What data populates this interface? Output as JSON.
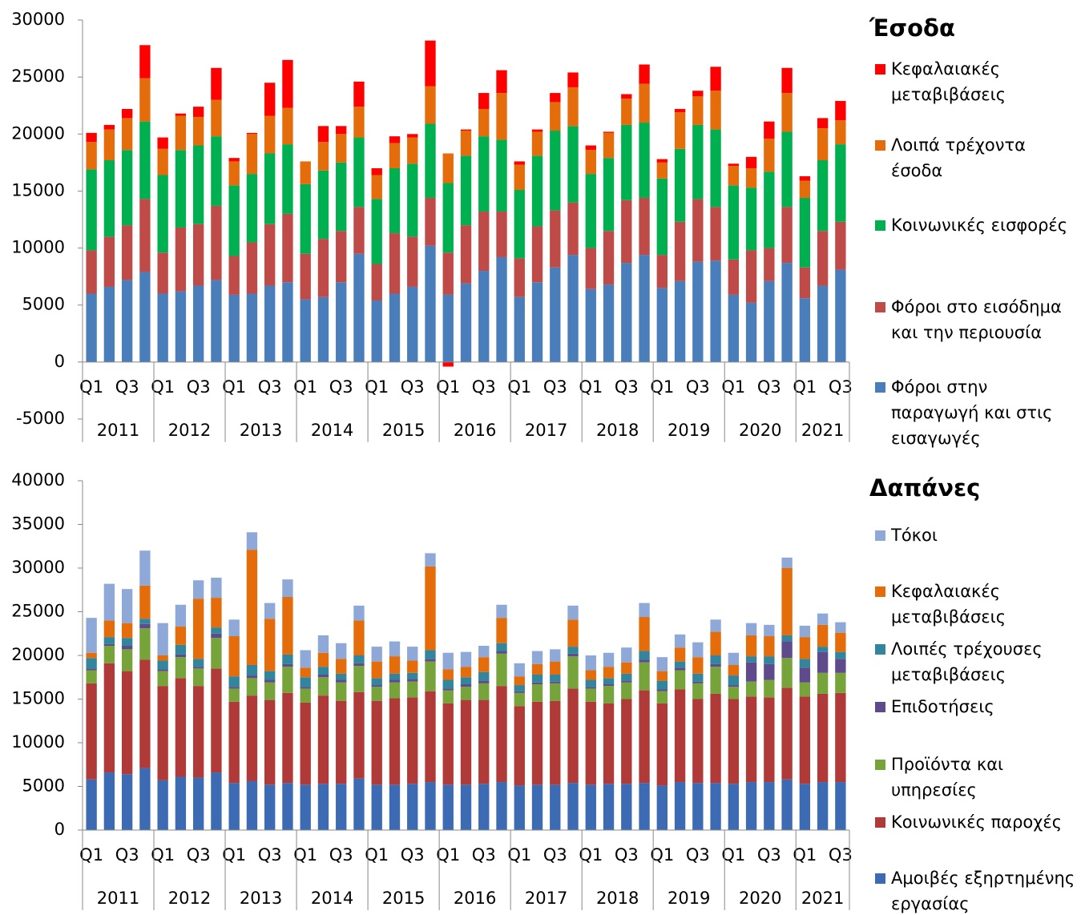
{
  "chart_data": [
    {
      "type": "stacked-bar",
      "title": "Έσοδα",
      "categories": [
        "Q1",
        null,
        "Q3",
        null,
        "Q1",
        null,
        "Q3",
        null,
        "Q1",
        null,
        "Q3",
        null,
        "Q1",
        null,
        "Q3",
        null,
        "Q1",
        null,
        "Q3",
        null,
        "Q1",
        null,
        "Q3",
        null,
        "Q1",
        null,
        "Q3",
        null,
        "Q1",
        null,
        "Q3",
        null,
        "Q1",
        null,
        "Q3",
        null,
        "Q1",
        null,
        "Q3",
        null,
        "Q1",
        null,
        "Q3"
      ],
      "years": [
        "2011",
        "2012",
        "2013",
        "2014",
        "2015",
        "2016",
        "2017",
        "2018",
        "2019",
        "2020",
        "2021"
      ],
      "ylim": [
        -5000,
        30000
      ],
      "yticks": [
        -5000,
        0,
        5000,
        10000,
        15000,
        20000,
        25000,
        30000
      ],
      "grid": false,
      "series": [
        {
          "name": "Φόροι στην παραγωγή και στις εισαγωγές",
          "color": "#4a7ebb",
          "values": [
            6000,
            6600,
            7200,
            7900,
            6000,
            6200,
            6700,
            7200,
            5900,
            6000,
            6700,
            7000,
            5500,
            5700,
            7000,
            9500,
            5400,
            6000,
            6600,
            10200,
            5900,
            6900,
            8000,
            9200,
            5700,
            7000,
            8300,
            9400,
            6400,
            6800,
            8700,
            9400,
            6500,
            7100,
            8800,
            8900,
            5900,
            5200,
            7100,
            8700,
            5600,
            6700,
            8100
          ]
        },
        {
          "name": "Φόροι στο εισόδημα και την περιουσία",
          "color": "#be4b48",
          "values": [
            3800,
            4400,
            4800,
            6400,
            3600,
            5600,
            5400,
            6500,
            3400,
            4500,
            5400,
            6000,
            4000,
            5100,
            4500,
            4100,
            3200,
            5300,
            4400,
            4200,
            3700,
            5100,
            5200,
            4000,
            3400,
            4900,
            5000,
            4600,
            3600,
            4700,
            5500,
            5000,
            2900,
            5200,
            5500,
            4700,
            3100,
            4600,
            2900,
            4900,
            2700,
            4800,
            4200
          ]
        },
        {
          "name": "Κοινωνικές εισφορές",
          "color": "#00b050",
          "values": [
            7100,
            6700,
            6600,
            6800,
            6800,
            6800,
            6900,
            6100,
            6200,
            6000,
            6200,
            6100,
            6100,
            6000,
            6000,
            6100,
            5700,
            5700,
            6400,
            6500,
            6100,
            6100,
            6600,
            6300,
            6000,
            6200,
            7000,
            6700,
            6500,
            6400,
            6600,
            6600,
            6700,
            6400,
            6500,
            6800,
            6500,
            5500,
            6700,
            6600,
            6100,
            6200,
            6800
          ]
        },
        {
          "name": "Λοιπά τρέχοντα έσοδα",
          "color": "#e46c0a",
          "values": [
            2400,
            2700,
            2800,
            3800,
            2300,
            3000,
            2500,
            3200,
            2100,
            3500,
            3300,
            3200,
            2000,
            2500,
            2500,
            2700,
            2100,
            2200,
            2300,
            3300,
            2600,
            2200,
            2400,
            4100,
            2200,
            2100,
            2500,
            3400,
            2100,
            2200,
            2300,
            3400,
            1400,
            3200,
            2500,
            3400,
            1700,
            1700,
            2900,
            3400,
            1500,
            2800,
            2100
          ]
        },
        {
          "name": "Κεφαλαιακές μεταβιβάσεις",
          "color": "#ff0000",
          "values": [
            800,
            400,
            800,
            2900,
            1000,
            200,
            900,
            2800,
            300,
            100,
            2900,
            4200,
            0,
            1400,
            700,
            2200,
            600,
            600,
            300,
            4000,
            -400,
            100,
            1400,
            2000,
            300,
            200,
            800,
            1300,
            400,
            100,
            400,
            1700,
            300,
            300,
            500,
            2100,
            200,
            1000,
            1500,
            2200,
            400,
            900,
            1700
          ]
        }
      ]
    },
    {
      "type": "stacked-bar",
      "title": "Δαπάνες",
      "categories": [
        "Q1",
        null,
        "Q3",
        null,
        "Q1",
        null,
        "Q3",
        null,
        "Q1",
        null,
        "Q3",
        null,
        "Q1",
        null,
        "Q3",
        null,
        "Q1",
        null,
        "Q3",
        null,
        "Q1",
        null,
        "Q3",
        null,
        "Q1",
        null,
        "Q3",
        null,
        "Q1",
        null,
        "Q3",
        null,
        "Q1",
        null,
        "Q3",
        null,
        "Q1",
        null,
        "Q3",
        null,
        "Q1",
        null,
        "Q3"
      ],
      "years": [
        "2011",
        "2012",
        "2013",
        "2014",
        "2015",
        "2016",
        "2017",
        "2018",
        "2019",
        "2020",
        "2021"
      ],
      "ylim": [
        0,
        40000
      ],
      "yticks": [
        0,
        5000,
        10000,
        15000,
        20000,
        25000,
        30000,
        35000,
        40000
      ],
      "grid": false,
      "series": [
        {
          "name": "Αμοιβές εξηρτημένης εργασίας",
          "color": "#3c6bb3",
          "values": [
            5800,
            6600,
            6400,
            7100,
            5700,
            6100,
            6000,
            6600,
            5400,
            5600,
            5200,
            5400,
            5200,
            5300,
            5300,
            5900,
            5200,
            5200,
            5300,
            5500,
            5200,
            5200,
            5300,
            5500,
            5100,
            5200,
            5200,
            5400,
            5200,
            5300,
            5300,
            5400,
            5100,
            5500,
            5400,
            5400,
            5300,
            5500,
            5500,
            5800,
            5300,
            5500,
            5500
          ]
        },
        {
          "name": "Κοινωνικές παροχές",
          "color": "#b03a37",
          "values": [
            11000,
            12500,
            11800,
            12400,
            10800,
            11300,
            10500,
            11900,
            9300,
            9800,
            9700,
            10300,
            9400,
            10100,
            9500,
            9900,
            9600,
            9900,
            9900,
            10400,
            9300,
            9700,
            9600,
            11000,
            9100,
            9500,
            9600,
            10800,
            9500,
            9200,
            9700,
            10600,
            9400,
            10600,
            9600,
            10200,
            9700,
            9800,
            9700,
            10500,
            10000,
            10100,
            10200
          ]
        },
        {
          "name": "Προϊόντα και υπηρεσίες",
          "color": "#77a43a",
          "values": [
            1500,
            2000,
            2500,
            3600,
            1700,
            2400,
            2000,
            3500,
            1500,
            2000,
            2000,
            3000,
            1600,
            2100,
            2100,
            3000,
            1600,
            1800,
            1800,
            3400,
            1500,
            1500,
            1900,
            3700,
            1500,
            2000,
            2000,
            3700,
            1500,
            2000,
            1900,
            3200,
            1400,
            2200,
            1800,
            3100,
            1400,
            1700,
            2000,
            3400,
            1600,
            2400,
            2300
          ]
        },
        {
          "name": "Επιδοτήσεις",
          "color": "#5f4a8b",
          "values": [
            200,
            200,
            400,
            500,
            200,
            300,
            200,
            500,
            200,
            300,
            300,
            300,
            200,
            300,
            300,
            300,
            200,
            300,
            300,
            300,
            200,
            300,
            300,
            300,
            200,
            200,
            200,
            300,
            200,
            200,
            200,
            300,
            200,
            300,
            200,
            300,
            200,
            2200,
            1800,
            1900,
            1700,
            2400,
            1600
          ]
        },
        {
          "name": "Λοιπές τρέχουσες μεταβιβάσεις",
          "color": "#31859c",
          "values": [
            1200,
            800,
            900,
            600,
            1000,
            1100,
            900,
            700,
            1200,
            1200,
            1000,
            1100,
            1100,
            900,
            700,
            900,
            800,
            700,
            700,
            1000,
            1000,
            800,
            1000,
            900,
            700,
            900,
            800,
            800,
            800,
            700,
            800,
            1000,
            1000,
            700,
            900,
            1000,
            1100,
            700,
            900,
            700,
            1000,
            600,
            800
          ]
        },
        {
          "name": "Κεφαλαιακές μεταβιβάσεις",
          "color": "#e46c0a",
          "values": [
            600,
            1900,
            1700,
            3800,
            600,
            2100,
            6900,
            3400,
            4600,
            13200,
            6000,
            6600,
            1100,
            1600,
            1700,
            4000,
            1900,
            2000,
            1400,
            9600,
            1200,
            1200,
            1700,
            2900,
            1000,
            1200,
            1500,
            3100,
            1100,
            1300,
            1300,
            3900,
            1100,
            1600,
            1900,
            2700,
            1200,
            2400,
            2300,
            7700,
            2500,
            2500,
            2200
          ]
        },
        {
          "name": "Τόκοι",
          "color": "#8ea8d8",
          "values": [
            4000,
            4200,
            3900,
            4000,
            3700,
            2500,
            2100,
            2300,
            1900,
            2000,
            1800,
            2000,
            2000,
            2000,
            1800,
            1700,
            1700,
            1700,
            1600,
            1500,
            1900,
            1700,
            1300,
            1500,
            1500,
            1500,
            1400,
            1600,
            1700,
            1600,
            1700,
            1600,
            1600,
            1500,
            1700,
            1400,
            1400,
            1400,
            1300,
            1200,
            1300,
            1300,
            1200
          ]
        }
      ]
    }
  ]
}
